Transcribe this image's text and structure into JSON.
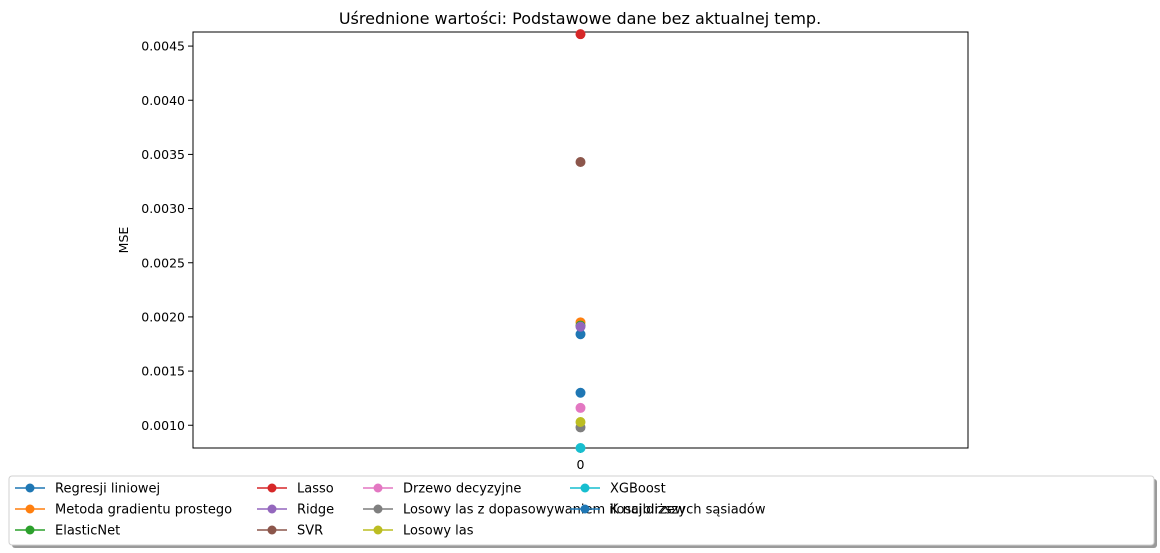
{
  "chart_data": {
    "type": "scatter",
    "title": "Uśrednione wartości: Podstawowe dane bez aktualnej temp.",
    "xlabel": "",
    "ylabel": "MSE",
    "x_ticks": [
      "0"
    ],
    "y_ticks": [
      "0.0010",
      "0.0015",
      "0.0020",
      "0.0025",
      "0.0030",
      "0.0035",
      "0.0040",
      "0.0045"
    ],
    "ylim": [
      0.00079,
      0.00463
    ],
    "xlim": [
      -0.5,
      0.5
    ],
    "grid": false,
    "legend_position": "bottom",
    "series": [
      {
        "name": "Regresji liniowej",
        "x": 0,
        "y": 0.00184,
        "color": "#1f77b4"
      },
      {
        "name": "Metoda gradientu prostego",
        "x": 0,
        "y": 0.00195,
        "color": "#ff7f0e"
      },
      {
        "name": "ElasticNet",
        "x": 0,
        "y": 0.00192,
        "color": "#2ca02c"
      },
      {
        "name": "Lasso",
        "x": 0,
        "y": 0.00461,
        "color": "#d62728"
      },
      {
        "name": "Ridge",
        "x": 0,
        "y": 0.00191,
        "color": "#9467bd"
      },
      {
        "name": "SVR",
        "x": 0,
        "y": 0.00343,
        "color": "#8c564b"
      },
      {
        "name": "Drzewo decyzyjne",
        "x": 0,
        "y": 0.00116,
        "color": "#e377c2"
      },
      {
        "name": "Losowy las z dopasowywaniem ilosci drzew",
        "x": 0,
        "y": 0.00098,
        "color": "#7f7f7f"
      },
      {
        "name": "Losowy las",
        "x": 0,
        "y": 0.00103,
        "color": "#bcbd22"
      },
      {
        "name": "XGBoost",
        "x": 0,
        "y": 0.00079,
        "color": "#17becf"
      },
      {
        "name": "K najbliższych sąsiadów",
        "x": 0,
        "y": 0.0013,
        "color": "#1f77b4"
      }
    ]
  }
}
